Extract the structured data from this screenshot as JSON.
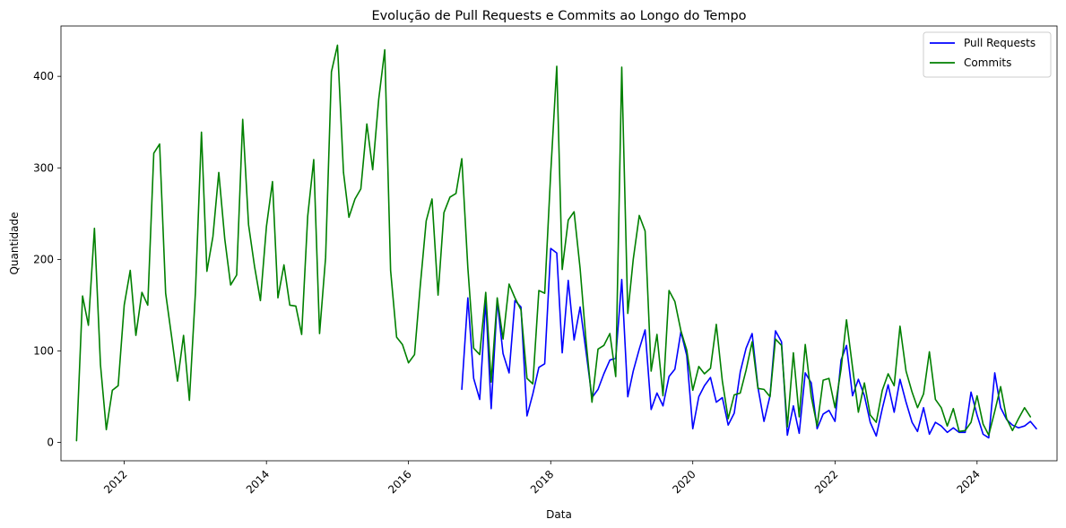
{
  "chart_data": {
    "type": "line",
    "title": "Evolução de Pull Requests e Commits ao Longo do Tempo",
    "xlabel": "Data",
    "ylabel": "Quantidade",
    "xlim": [
      "2011-02-10",
      "2025-02-15"
    ],
    "ylim": [
      -20,
      455
    ],
    "x_ticks": [
      "2012",
      "2014",
      "2016",
      "2018",
      "2020",
      "2022",
      "2024"
    ],
    "y_ticks": [
      0,
      100,
      200,
      300,
      400
    ],
    "grid": false,
    "legend_position": "top-right",
    "series": [
      {
        "name": "Pull Requests",
        "color": "#0000ff",
        "points": [
          [
            "2016-10-01",
            58
          ],
          [
            "2016-11-01",
            158
          ],
          [
            "2016-12-01",
            70
          ],
          [
            "2017-01-01",
            47
          ],
          [
            "2017-02-01",
            155
          ],
          [
            "2017-03-01",
            37
          ],
          [
            "2017-04-01",
            155
          ],
          [
            "2017-05-01",
            97
          ],
          [
            "2017-06-01",
            76
          ],
          [
            "2017-07-01",
            155
          ],
          [
            "2017-08-01",
            148
          ],
          [
            "2017-09-01",
            29
          ],
          [
            "2017-10-01",
            53
          ],
          [
            "2017-11-01",
            82
          ],
          [
            "2017-12-01",
            86
          ],
          [
            "2018-01-01",
            212
          ],
          [
            "2018-02-01",
            207
          ],
          [
            "2018-03-01",
            98
          ],
          [
            "2018-04-01",
            177
          ],
          [
            "2018-05-01",
            112
          ],
          [
            "2018-06-01",
            148
          ],
          [
            "2018-07-01",
            100
          ],
          [
            "2018-08-01",
            49
          ],
          [
            "2018-09-01",
            58
          ],
          [
            "2018-10-01",
            75
          ],
          [
            "2018-11-01",
            90
          ],
          [
            "2018-12-01",
            92
          ],
          [
            "2019-01-01",
            178
          ],
          [
            "2019-02-01",
            50
          ],
          [
            "2019-03-01",
            78
          ],
          [
            "2019-04-01",
            102
          ],
          [
            "2019-05-01",
            123
          ],
          [
            "2019-06-01",
            36
          ],
          [
            "2019-07-01",
            54
          ],
          [
            "2019-08-01",
            40
          ],
          [
            "2019-09-01",
            72
          ],
          [
            "2019-10-01",
            80
          ],
          [
            "2019-11-01",
            121
          ],
          [
            "2019-12-01",
            95
          ],
          [
            "2020-01-01",
            15
          ],
          [
            "2020-02-01",
            50
          ],
          [
            "2020-03-01",
            62
          ],
          [
            "2020-04-01",
            71
          ],
          [
            "2020-05-01",
            44
          ],
          [
            "2020-06-01",
            49
          ],
          [
            "2020-07-01",
            19
          ],
          [
            "2020-08-01",
            32
          ],
          [
            "2020-09-01",
            77
          ],
          [
            "2020-10-01",
            103
          ],
          [
            "2020-11-01",
            119
          ],
          [
            "2020-12-01",
            60
          ],
          [
            "2021-01-01",
            23
          ],
          [
            "2021-02-01",
            51
          ],
          [
            "2021-03-01",
            122
          ],
          [
            "2021-04-01",
            110
          ],
          [
            "2021-05-01",
            8
          ],
          [
            "2021-06-01",
            40
          ],
          [
            "2021-07-01",
            10
          ],
          [
            "2021-08-01",
            76
          ],
          [
            "2021-09-01",
            65
          ],
          [
            "2021-10-01",
            15
          ],
          [
            "2021-11-01",
            31
          ],
          [
            "2021-12-01",
            35
          ],
          [
            "2022-01-01",
            23
          ],
          [
            "2022-02-01",
            90
          ],
          [
            "2022-03-01",
            106
          ],
          [
            "2022-04-01",
            51
          ],
          [
            "2022-05-01",
            69
          ],
          [
            "2022-06-01",
            51
          ],
          [
            "2022-07-01",
            22
          ],
          [
            "2022-08-01",
            7
          ],
          [
            "2022-09-01",
            37
          ],
          [
            "2022-10-01",
            63
          ],
          [
            "2022-11-01",
            33
          ],
          [
            "2022-12-01",
            69
          ],
          [
            "2023-01-01",
            44
          ],
          [
            "2023-02-01",
            22
          ],
          [
            "2023-03-01",
            12
          ],
          [
            "2023-04-01",
            38
          ],
          [
            "2023-05-01",
            9
          ],
          [
            "2023-06-01",
            22
          ],
          [
            "2023-07-01",
            18
          ],
          [
            "2023-08-01",
            11
          ],
          [
            "2023-09-01",
            16
          ],
          [
            "2023-10-01",
            11
          ],
          [
            "2023-11-01",
            11
          ],
          [
            "2023-12-01",
            55
          ],
          [
            "2024-01-01",
            30
          ],
          [
            "2024-02-01",
            9
          ],
          [
            "2024-03-01",
            5
          ],
          [
            "2024-04-01",
            76
          ],
          [
            "2024-05-01",
            38
          ],
          [
            "2024-06-01",
            25
          ],
          [
            "2024-07-01",
            19
          ],
          [
            "2024-08-01",
            16
          ],
          [
            "2024-09-01",
            18
          ],
          [
            "2024-10-01",
            23
          ],
          [
            "2024-11-01",
            15
          ]
        ]
      },
      {
        "name": "Commits",
        "color": "#008000",
        "points": [
          [
            "2011-05-01",
            2
          ],
          [
            "2011-06-01",
            160
          ],
          [
            "2011-07-01",
            128
          ],
          [
            "2011-08-01",
            234
          ],
          [
            "2011-09-01",
            85
          ],
          [
            "2011-10-01",
            14
          ],
          [
            "2011-11-01",
            57
          ],
          [
            "2011-12-01",
            62
          ],
          [
            "2012-01-01",
            150
          ],
          [
            "2012-02-01",
            188
          ],
          [
            "2012-03-01",
            117
          ],
          [
            "2012-04-01",
            164
          ],
          [
            "2012-05-01",
            150
          ],
          [
            "2012-06-01",
            316
          ],
          [
            "2012-07-01",
            326
          ],
          [
            "2012-08-01",
            163
          ],
          [
            "2012-09-01",
            115
          ],
          [
            "2012-10-01",
            67
          ],
          [
            "2012-11-01",
            117
          ],
          [
            "2012-12-01",
            46
          ],
          [
            "2013-01-01",
            164
          ],
          [
            "2013-02-01",
            339
          ],
          [
            "2013-03-01",
            187
          ],
          [
            "2013-04-01",
            225
          ],
          [
            "2013-05-01",
            295
          ],
          [
            "2013-06-01",
            222
          ],
          [
            "2013-07-01",
            172
          ],
          [
            "2013-08-01",
            183
          ],
          [
            "2013-09-01",
            353
          ],
          [
            "2013-10-01",
            238
          ],
          [
            "2013-11-01",
            192
          ],
          [
            "2013-12-01",
            155
          ],
          [
            "2014-01-01",
            236
          ],
          [
            "2014-02-01",
            285
          ],
          [
            "2014-03-01",
            158
          ],
          [
            "2014-04-01",
            194
          ],
          [
            "2014-05-01",
            150
          ],
          [
            "2014-06-01",
            149
          ],
          [
            "2014-07-01",
            118
          ],
          [
            "2014-08-01",
            247
          ],
          [
            "2014-09-01",
            309
          ],
          [
            "2014-10-01",
            119
          ],
          [
            "2014-11-01",
            202
          ],
          [
            "2014-12-01",
            405
          ],
          [
            "2015-01-01",
            434
          ],
          [
            "2015-02-01",
            295
          ],
          [
            "2015-03-01",
            246
          ],
          [
            "2015-04-01",
            266
          ],
          [
            "2015-05-01",
            277
          ],
          [
            "2015-06-01",
            348
          ],
          [
            "2015-07-01",
            298
          ],
          [
            "2015-08-01",
            375
          ],
          [
            "2015-09-01",
            429
          ],
          [
            "2015-10-01",
            188
          ],
          [
            "2015-11-01",
            115
          ],
          [
            "2015-12-01",
            107
          ],
          [
            "2016-01-01",
            87
          ],
          [
            "2016-02-01",
            96
          ],
          [
            "2016-03-01",
            170
          ],
          [
            "2016-04-01",
            242
          ],
          [
            "2016-05-01",
            266
          ],
          [
            "2016-06-01",
            161
          ],
          [
            "2016-07-01",
            251
          ],
          [
            "2016-08-01",
            268
          ],
          [
            "2016-09-01",
            272
          ],
          [
            "2016-10-01",
            310
          ],
          [
            "2016-11-01",
            191
          ],
          [
            "2016-12-01",
            103
          ],
          [
            "2017-01-01",
            96
          ],
          [
            "2017-02-01",
            164
          ],
          [
            "2017-03-01",
            66
          ],
          [
            "2017-04-01",
            158
          ],
          [
            "2017-05-01",
            113
          ],
          [
            "2017-06-01",
            173
          ],
          [
            "2017-07-01",
            158
          ],
          [
            "2017-08-01",
            145
          ],
          [
            "2017-09-01",
            70
          ],
          [
            "2017-10-01",
            64
          ],
          [
            "2017-11-01",
            166
          ],
          [
            "2017-12-01",
            163
          ],
          [
            "2018-01-01",
            295
          ],
          [
            "2018-02-01",
            411
          ],
          [
            "2018-03-01",
            189
          ],
          [
            "2018-04-01",
            243
          ],
          [
            "2018-05-01",
            252
          ],
          [
            "2018-06-01",
            190
          ],
          [
            "2018-07-01",
            112
          ],
          [
            "2018-08-01",
            44
          ],
          [
            "2018-09-01",
            102
          ],
          [
            "2018-10-01",
            106
          ],
          [
            "2018-11-01",
            119
          ],
          [
            "2018-12-01",
            72
          ],
          [
            "2019-01-01",
            410
          ],
          [
            "2019-02-01",
            141
          ],
          [
            "2019-03-01",
            200
          ],
          [
            "2019-04-01",
            248
          ],
          [
            "2019-05-01",
            231
          ],
          [
            "2019-06-01",
            78
          ],
          [
            "2019-07-01",
            118
          ],
          [
            "2019-08-01",
            51
          ],
          [
            "2019-09-01",
            166
          ],
          [
            "2019-10-01",
            154
          ],
          [
            "2019-11-01",
            122
          ],
          [
            "2019-12-01",
            101
          ],
          [
            "2020-01-01",
            57
          ],
          [
            "2020-02-01",
            83
          ],
          [
            "2020-03-01",
            75
          ],
          [
            "2020-04-01",
            81
          ],
          [
            "2020-05-01",
            129
          ],
          [
            "2020-06-01",
            67
          ],
          [
            "2020-07-01",
            26
          ],
          [
            "2020-08-01",
            52
          ],
          [
            "2020-09-01",
            54
          ],
          [
            "2020-10-01",
            79
          ],
          [
            "2020-11-01",
            110
          ],
          [
            "2020-12-01",
            59
          ],
          [
            "2021-01-01",
            58
          ],
          [
            "2021-02-01",
            50
          ],
          [
            "2021-03-01",
            113
          ],
          [
            "2021-04-01",
            106
          ],
          [
            "2021-05-01",
            17
          ],
          [
            "2021-06-01",
            98
          ],
          [
            "2021-07-01",
            28
          ],
          [
            "2021-08-01",
            107
          ],
          [
            "2021-09-01",
            50
          ],
          [
            "2021-10-01",
            18
          ],
          [
            "2021-11-01",
            68
          ],
          [
            "2021-12-01",
            70
          ],
          [
            "2022-01-01",
            38
          ],
          [
            "2022-02-01",
            80
          ],
          [
            "2022-03-01",
            134
          ],
          [
            "2022-04-01",
            82
          ],
          [
            "2022-05-01",
            33
          ],
          [
            "2022-06-01",
            65
          ],
          [
            "2022-07-01",
            30
          ],
          [
            "2022-08-01",
            22
          ],
          [
            "2022-09-01",
            57
          ],
          [
            "2022-10-01",
            75
          ],
          [
            "2022-11-01",
            62
          ],
          [
            "2022-12-01",
            127
          ],
          [
            "2023-01-01",
            78
          ],
          [
            "2023-02-01",
            55
          ],
          [
            "2023-03-01",
            38
          ],
          [
            "2023-04-01",
            53
          ],
          [
            "2023-05-01",
            99
          ],
          [
            "2023-06-01",
            47
          ],
          [
            "2023-07-01",
            38
          ],
          [
            "2023-08-01",
            18
          ],
          [
            "2023-09-01",
            37
          ],
          [
            "2023-10-01",
            12
          ],
          [
            "2023-11-01",
            13
          ],
          [
            "2023-12-01",
            22
          ],
          [
            "2024-01-01",
            51
          ],
          [
            "2024-02-01",
            20
          ],
          [
            "2024-03-01",
            8
          ],
          [
            "2024-04-01",
            34
          ],
          [
            "2024-05-01",
            61
          ],
          [
            "2024-06-01",
            26
          ],
          [
            "2024-07-01",
            13
          ],
          [
            "2024-08-01",
            26
          ],
          [
            "2024-09-01",
            38
          ],
          [
            "2024-10-01",
            28
          ]
        ]
      }
    ]
  }
}
